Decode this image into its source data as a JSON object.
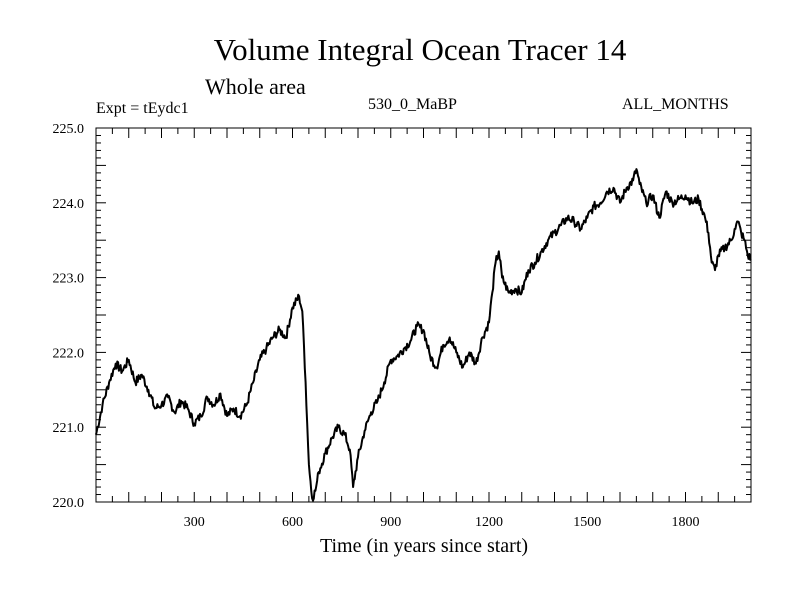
{
  "chart_data": {
    "type": "line",
    "title": "Volume Integral Ocean Tracer 14",
    "subtitle": "Whole area",
    "left_label": "Expt = tEydc1",
    "center_label": "530_0_MaBP",
    "right_label": "ALL_MONTHS",
    "xlabel": "Time (in years since start)",
    "ylabel": "",
    "xlim": [
      0,
      2000
    ],
    "ylim": [
      220.0,
      225.0
    ],
    "x_ticks": [
      300,
      600,
      900,
      1200,
      1500,
      1800
    ],
    "x_tick_labels": [
      "300",
      "600",
      "900",
      "1200",
      "1500",
      "1800"
    ],
    "y_ticks": [
      220.0,
      221.0,
      222.0,
      223.0,
      224.0,
      225.0
    ],
    "y_tick_labels": [
      "220.0",
      "221.0",
      "222.0",
      "223.0",
      "224.0",
      "225.0"
    ],
    "series": [
      {
        "name": "Ocean Tracer 14",
        "x": [
          0,
          20,
          40,
          60,
          80,
          100,
          120,
          140,
          160,
          180,
          200,
          220,
          240,
          260,
          280,
          300,
          320,
          340,
          360,
          380,
          400,
          420,
          440,
          460,
          480,
          500,
          520,
          540,
          560,
          580,
          600,
          620,
          630,
          640,
          650,
          660,
          670,
          680,
          700,
          720,
          740,
          760,
          775,
          785,
          800,
          820,
          840,
          860,
          880,
          900,
          920,
          940,
          960,
          980,
          1000,
          1020,
          1040,
          1060,
          1080,
          1100,
          1120,
          1140,
          1160,
          1180,
          1200,
          1210,
          1220,
          1230,
          1240,
          1260,
          1280,
          1300,
          1320,
          1340,
          1360,
          1380,
          1400,
          1420,
          1440,
          1460,
          1480,
          1500,
          1520,
          1540,
          1560,
          1580,
          1600,
          1620,
          1640,
          1650,
          1660,
          1680,
          1700,
          1720,
          1740,
          1760,
          1780,
          1800,
          1820,
          1840,
          1860,
          1870,
          1880,
          1890,
          1900,
          1920,
          1940,
          1950,
          1960,
          1970,
          1980,
          1990,
          2000
        ],
        "y": [
          220.9,
          221.3,
          221.6,
          221.85,
          221.75,
          221.9,
          221.6,
          221.7,
          221.5,
          221.25,
          221.3,
          221.4,
          221.2,
          221.35,
          221.25,
          221.05,
          221.15,
          221.4,
          221.3,
          221.45,
          221.15,
          221.25,
          221.15,
          221.3,
          221.6,
          221.9,
          222.05,
          222.2,
          222.3,
          222.2,
          222.6,
          222.75,
          222.55,
          221.6,
          220.5,
          220.05,
          220.15,
          220.4,
          220.65,
          220.85,
          221.0,
          220.9,
          220.7,
          220.2,
          220.6,
          220.95,
          221.2,
          221.35,
          221.6,
          221.9,
          221.95,
          222.05,
          222.15,
          222.35,
          222.3,
          221.95,
          221.8,
          222.1,
          222.2,
          222.0,
          221.8,
          222.0,
          221.85,
          222.2,
          222.4,
          222.8,
          223.2,
          223.35,
          223.0,
          222.8,
          222.85,
          222.8,
          223.1,
          223.2,
          223.35,
          223.5,
          223.6,
          223.7,
          223.8,
          223.75,
          223.65,
          223.8,
          223.95,
          224.0,
          224.15,
          224.2,
          224.0,
          224.2,
          224.3,
          224.45,
          224.25,
          224.0,
          224.1,
          223.8,
          224.15,
          224.0,
          224.05,
          224.1,
          224.0,
          224.05,
          223.8,
          223.6,
          223.2,
          223.1,
          223.3,
          223.4,
          223.5,
          223.65,
          223.75,
          223.6,
          223.5,
          223.3,
          223.25
        ]
      }
    ]
  },
  "style": {
    "line_color": "#000000",
    "axis_color": "#000000"
  }
}
